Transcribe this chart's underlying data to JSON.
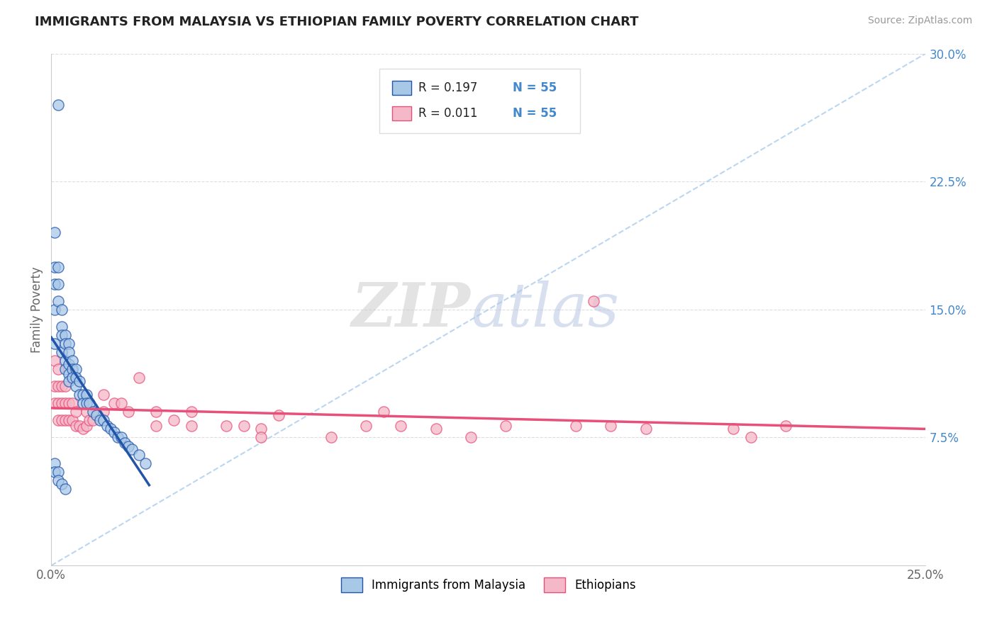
{
  "title": "IMMIGRANTS FROM MALAYSIA VS ETHIOPIAN FAMILY POVERTY CORRELATION CHART",
  "source": "Source: ZipAtlas.com",
  "ylabel": "Family Poverty",
  "xlim": [
    0.0,
    0.25
  ],
  "ylim": [
    0.0,
    0.3
  ],
  "yticks_right": [
    0.075,
    0.15,
    0.225,
    0.3
  ],
  "ytick_labels_right": [
    "7.5%",
    "15.0%",
    "22.5%",
    "30.0%"
  ],
  "legend_r1": "R = 0.197",
  "legend_n1": "N = 55",
  "legend_r2": "R = 0.011",
  "legend_n2": "N = 55",
  "legend_label1": "Immigrants from Malaysia",
  "legend_label2": "Ethiopians",
  "color_malaysia": "#a8c8e8",
  "color_ethiopia": "#f4b8c8",
  "color_trendline_malaysia": "#2255aa",
  "color_trendline_ethiopia": "#e8507a",
  "color_diagonal": "#aaccee",
  "watermark_zip": "ZIP",
  "watermark_atlas": "atlas",
  "malaysia_x": [
    0.002,
    0.001,
    0.001,
    0.001,
    0.001,
    0.001,
    0.002,
    0.002,
    0.002,
    0.003,
    0.003,
    0.003,
    0.003,
    0.004,
    0.004,
    0.004,
    0.004,
    0.005,
    0.005,
    0.005,
    0.005,
    0.005,
    0.006,
    0.006,
    0.006,
    0.007,
    0.007,
    0.007,
    0.008,
    0.008,
    0.009,
    0.009,
    0.01,
    0.01,
    0.011,
    0.012,
    0.013,
    0.014,
    0.015,
    0.016,
    0.017,
    0.018,
    0.019,
    0.02,
    0.021,
    0.022,
    0.023,
    0.025,
    0.027,
    0.001,
    0.001,
    0.002,
    0.002,
    0.003,
    0.004
  ],
  "malaysia_y": [
    0.27,
    0.195,
    0.175,
    0.165,
    0.15,
    0.13,
    0.175,
    0.165,
    0.155,
    0.15,
    0.14,
    0.135,
    0.125,
    0.135,
    0.13,
    0.12,
    0.115,
    0.13,
    0.125,
    0.118,
    0.112,
    0.108,
    0.12,
    0.115,
    0.11,
    0.115,
    0.11,
    0.105,
    0.108,
    0.1,
    0.1,
    0.095,
    0.1,
    0.095,
    0.095,
    0.09,
    0.088,
    0.085,
    0.085,
    0.082,
    0.08,
    0.078,
    0.075,
    0.075,
    0.072,
    0.07,
    0.068,
    0.065,
    0.06,
    0.06,
    0.055,
    0.055,
    0.05,
    0.048,
    0.045
  ],
  "ethiopia_x": [
    0.001,
    0.001,
    0.001,
    0.002,
    0.002,
    0.002,
    0.002,
    0.003,
    0.003,
    0.003,
    0.004,
    0.004,
    0.004,
    0.005,
    0.005,
    0.006,
    0.006,
    0.007,
    0.007,
    0.008,
    0.009,
    0.01,
    0.01,
    0.011,
    0.012,
    0.015,
    0.015,
    0.018,
    0.02,
    0.022,
    0.025,
    0.03,
    0.03,
    0.035,
    0.04,
    0.04,
    0.05,
    0.055,
    0.06,
    0.06,
    0.065,
    0.08,
    0.09,
    0.095,
    0.1,
    0.11,
    0.12,
    0.13,
    0.15,
    0.16,
    0.17,
    0.195,
    0.2,
    0.21,
    0.155
  ],
  "ethiopia_y": [
    0.12,
    0.105,
    0.095,
    0.115,
    0.105,
    0.095,
    0.085,
    0.105,
    0.095,
    0.085,
    0.105,
    0.095,
    0.085,
    0.095,
    0.085,
    0.095,
    0.085,
    0.09,
    0.082,
    0.082,
    0.08,
    0.09,
    0.082,
    0.085,
    0.085,
    0.1,
    0.09,
    0.095,
    0.095,
    0.09,
    0.11,
    0.09,
    0.082,
    0.085,
    0.09,
    0.082,
    0.082,
    0.082,
    0.08,
    0.075,
    0.088,
    0.075,
    0.082,
    0.09,
    0.082,
    0.08,
    0.075,
    0.082,
    0.082,
    0.082,
    0.08,
    0.08,
    0.075,
    0.082,
    0.155
  ]
}
